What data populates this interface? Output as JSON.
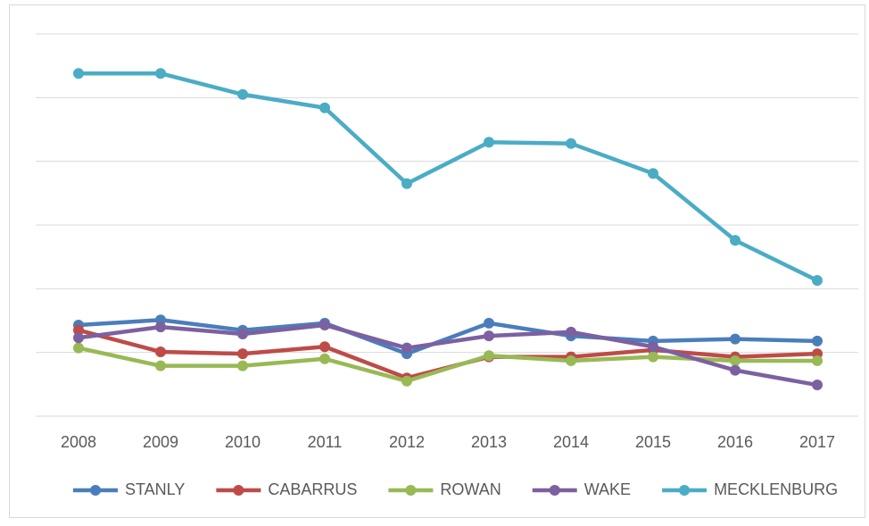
{
  "chart_data": {
    "type": "line",
    "categories": [
      "2008",
      "2009",
      "2010",
      "2011",
      "2012",
      "2013",
      "2014",
      "2015",
      "2016",
      "2017"
    ],
    "series": [
      {
        "name": "STANLY",
        "color": "#4a7ebb",
        "values": [
          1.43,
          1.51,
          1.35,
          1.46,
          0.98,
          1.46,
          1.26,
          1.18,
          1.21,
          1.18
        ]
      },
      {
        "name": "CABARRUS",
        "color": "#be4b48",
        "values": [
          1.35,
          1.01,
          0.98,
          1.09,
          0.6,
          0.93,
          0.93,
          1.04,
          0.93,
          0.98
        ]
      },
      {
        "name": "ROWAN",
        "color": "#98b954",
        "values": [
          1.07,
          0.79,
          0.79,
          0.9,
          0.55,
          0.95,
          0.87,
          0.93,
          0.87,
          0.87
        ]
      },
      {
        "name": "WAKE",
        "color": "#7d60a0",
        "values": [
          1.23,
          1.4,
          1.29,
          1.43,
          1.07,
          1.26,
          1.32,
          1.09,
          0.72,
          0.49
        ]
      },
      {
        "name": "MECKLENBURG",
        "color": "#4bacc6",
        "values": [
          5.38,
          5.38,
          5.05,
          4.84,
          3.65,
          4.3,
          4.28,
          3.81,
          2.76,
          2.13
        ]
      }
    ],
    "ylim": [
      0,
      6
    ],
    "yticks": [
      0,
      1,
      2,
      3,
      4,
      5,
      6
    ],
    "grid": true,
    "legend": "bottom"
  }
}
